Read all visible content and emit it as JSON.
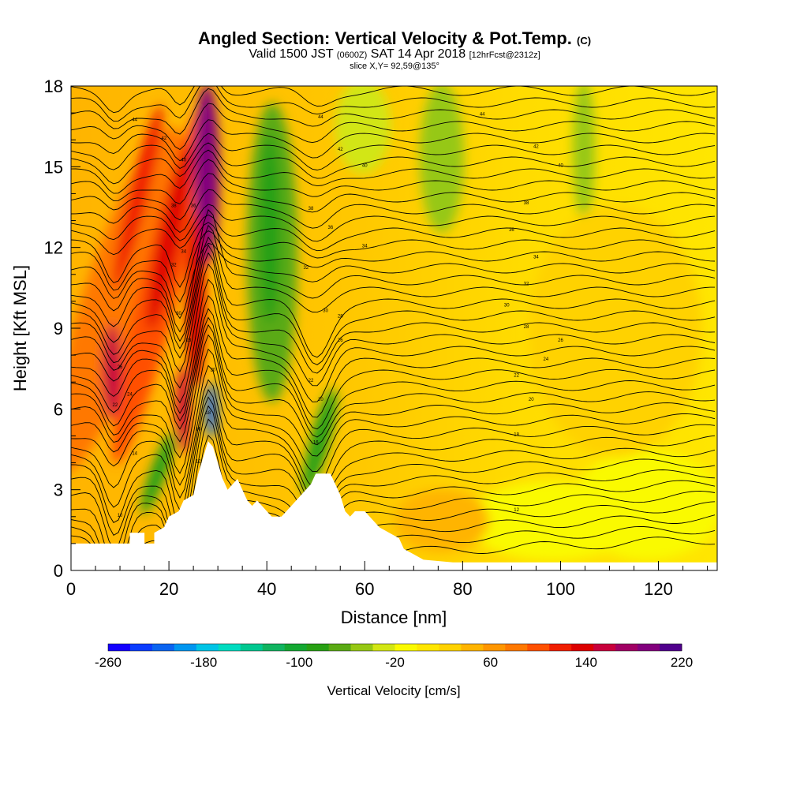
{
  "header": {
    "title_main": "Angled Section: Vertical Velocity & Pot.Temp.",
    "title_units": "(C)",
    "valid_a": "Valid 1500 JST",
    "valid_zulu": "(0600Z)",
    "valid_b": "SAT 14 Apr 2018",
    "forecast": "[12hrFcst@2312z]",
    "slice": "slice X,Y= 92,59@135°"
  },
  "chart_data": {
    "type": "heatmap",
    "xlabel": "Distance [nm]",
    "ylabel": "Height [Kft MSL]",
    "xlim": [
      0,
      132
    ],
    "ylim": [
      0,
      18
    ],
    "x_ticks": [
      0,
      20,
      40,
      60,
      80,
      100,
      120
    ],
    "y_ticks": [
      0,
      3,
      6,
      9,
      12,
      15,
      18
    ],
    "colorbar": {
      "label": "Vertical Velocity [cm/s]",
      "range": [
        -260,
        220
      ],
      "tick_values": [
        -260,
        -180,
        -100,
        -20,
        60,
        140,
        220
      ],
      "colors": [
        "#1400ff",
        "#0a3cff",
        "#0a64f0",
        "#0096f0",
        "#00c4e6",
        "#00dcc0",
        "#00c890",
        "#10b460",
        "#14a832",
        "#28a014",
        "#5aaa14",
        "#96c814",
        "#d2e614",
        "#fafa00",
        "#ffe600",
        "#ffd200",
        "#ffb400",
        "#ff9600",
        "#ff7800",
        "#ff5000",
        "#f01e00",
        "#dc0000",
        "#c8003c",
        "#a00064",
        "#82007d",
        "#50008c"
      ]
    },
    "surface_kft": [
      [
        0,
        1.0
      ],
      [
        12,
        1.0
      ],
      [
        12,
        1.4
      ],
      [
        15,
        1.4
      ],
      [
        15,
        1.0
      ],
      [
        17,
        1.0
      ],
      [
        17,
        1.4
      ],
      [
        19,
        1.6
      ],
      [
        20,
        2.0
      ],
      [
        22,
        2.2
      ],
      [
        23,
        2.6
      ],
      [
        25,
        2.8
      ],
      [
        26,
        3.6
      ],
      [
        27,
        4.2
      ],
      [
        28,
        4.8
      ],
      [
        29,
        4.6
      ],
      [
        30,
        4.0
      ],
      [
        31,
        3.4
      ],
      [
        32,
        3.0
      ],
      [
        33,
        3.2
      ],
      [
        34,
        3.4
      ],
      [
        35,
        3.0
      ],
      [
        36,
        2.6
      ],
      [
        37,
        2.4
      ],
      [
        38,
        2.6
      ],
      [
        39,
        2.4
      ],
      [
        40,
        2.2
      ],
      [
        41,
        2.0
      ],
      [
        43,
        2.0
      ],
      [
        45,
        2.4
      ],
      [
        47,
        2.8
      ],
      [
        49,
        3.2
      ],
      [
        50,
        3.6
      ],
      [
        53,
        3.6
      ],
      [
        54,
        3.2
      ],
      [
        55,
        2.8
      ],
      [
        56,
        2.2
      ],
      [
        57,
        2.0
      ],
      [
        58,
        2.2
      ],
      [
        60,
        2.2
      ],
      [
        61,
        2.0
      ],
      [
        63,
        1.6
      ],
      [
        65,
        1.4
      ],
      [
        67,
        1.2
      ],
      [
        68,
        0.8
      ],
      [
        70,
        0.6
      ],
      [
        72,
        0.4
      ],
      [
        78,
        0.3
      ],
      [
        85,
        0.3
      ],
      [
        95,
        0.3
      ],
      [
        132,
        0.3
      ]
    ],
    "theta_contour_labels": [
      {
        "x": 13,
        "y": 16.7,
        "text": "44"
      },
      {
        "x": 19,
        "y": 16.0,
        "text": "42"
      },
      {
        "x": 23,
        "y": 15.2,
        "text": "40"
      },
      {
        "x": 21,
        "y": 13.5,
        "text": "38"
      },
      {
        "x": 25,
        "y": 13.5,
        "text": "36"
      },
      {
        "x": 23,
        "y": 11.8,
        "text": "34"
      },
      {
        "x": 21,
        "y": 11.3,
        "text": "32"
      },
      {
        "x": 22,
        "y": 9.5,
        "text": "30"
      },
      {
        "x": 24,
        "y": 8.5,
        "text": "28"
      },
      {
        "x": 10,
        "y": 7.5,
        "text": "26"
      },
      {
        "x": 12,
        "y": 6.5,
        "text": "24"
      },
      {
        "x": 9,
        "y": 6.1,
        "text": "22"
      },
      {
        "x": 29,
        "y": 7.4,
        "text": "20"
      },
      {
        "x": 28,
        "y": 5.8,
        "text": "18"
      },
      {
        "x": 26,
        "y": 5.2,
        "text": "16"
      },
      {
        "x": 13,
        "y": 4.3,
        "text": "14"
      },
      {
        "x": 26,
        "y": 4.0,
        "text": "12"
      },
      {
        "x": 10,
        "y": 2.0,
        "text": "10"
      },
      {
        "x": 51,
        "y": 16.8,
        "text": "44"
      },
      {
        "x": 55,
        "y": 15.6,
        "text": "42"
      },
      {
        "x": 60,
        "y": 15.0,
        "text": "40"
      },
      {
        "x": 49,
        "y": 13.4,
        "text": "38"
      },
      {
        "x": 53,
        "y": 12.7,
        "text": "36"
      },
      {
        "x": 60,
        "y": 12.0,
        "text": "34"
      },
      {
        "x": 48,
        "y": 11.2,
        "text": "32"
      },
      {
        "x": 52,
        "y": 9.6,
        "text": "30"
      },
      {
        "x": 55,
        "y": 9.4,
        "text": "28"
      },
      {
        "x": 55,
        "y": 8.5,
        "text": "26"
      },
      {
        "x": 51,
        "y": 6.3,
        "text": "20"
      },
      {
        "x": 49,
        "y": 7.0,
        "text": "22"
      },
      {
        "x": 50,
        "y": 4.7,
        "text": "16"
      },
      {
        "x": 84,
        "y": 16.9,
        "text": "44"
      },
      {
        "x": 95,
        "y": 15.7,
        "text": "42"
      },
      {
        "x": 100,
        "y": 15.0,
        "text": "40"
      },
      {
        "x": 93,
        "y": 13.6,
        "text": "38"
      },
      {
        "x": 90,
        "y": 12.6,
        "text": "36"
      },
      {
        "x": 95,
        "y": 11.6,
        "text": "34"
      },
      {
        "x": 93,
        "y": 10.6,
        "text": "32"
      },
      {
        "x": 89,
        "y": 9.8,
        "text": "30"
      },
      {
        "x": 93,
        "y": 9.0,
        "text": "28"
      },
      {
        "x": 100,
        "y": 8.5,
        "text": "26"
      },
      {
        "x": 97,
        "y": 7.8,
        "text": "24"
      },
      {
        "x": 91,
        "y": 7.2,
        "text": "22"
      },
      {
        "x": 94,
        "y": 6.3,
        "text": "20"
      },
      {
        "x": 91,
        "y": 5.0,
        "text": "18"
      },
      {
        "x": 91,
        "y": 2.2,
        "text": "12"
      }
    ]
  }
}
